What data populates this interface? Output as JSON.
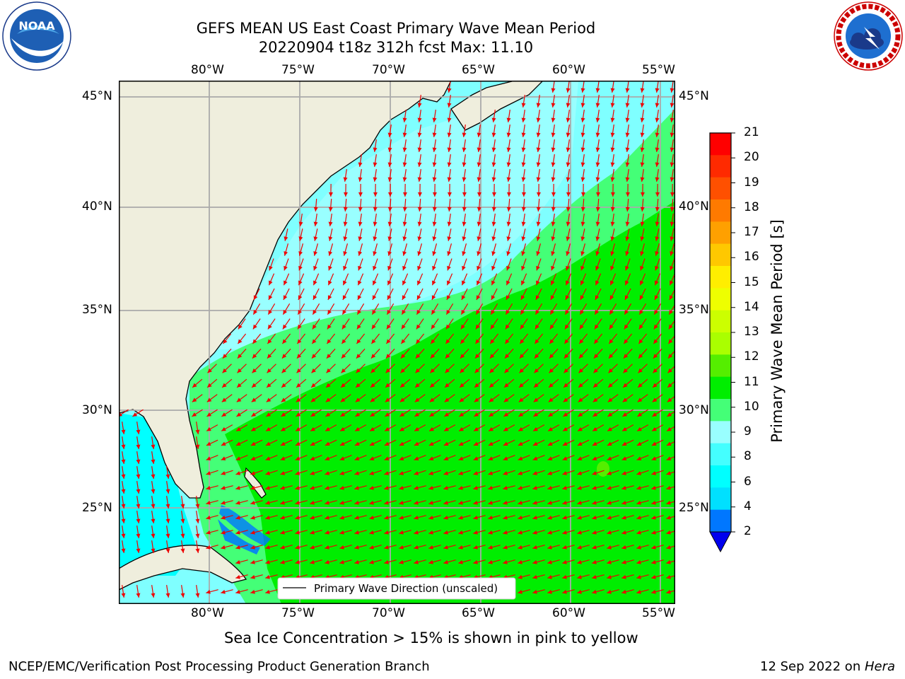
{
  "title": {
    "line1": "GEFS MEAN US East Coast Primary Wave Mean Period",
    "line2": "20220904 t18z 312h fcst   Max: 11.10"
  },
  "logos": {
    "left_icon": "noaa-logo-icon",
    "left_text": "NOAA",
    "left_ring": "NATIONAL OCEANIC AND ATMOSPHERIC ADMINISTRATION · U.S. DEPARTMENT OF COMMERCE",
    "right_icon": "nws-logo-icon",
    "right_ring": "NATIONAL WEATHER SERVICE"
  },
  "map": {
    "lon_labels": [
      "80°W",
      "75°W",
      "70°W",
      "65°W",
      "60°W",
      "55°W"
    ],
    "lat_labels": [
      "45°N",
      "40°N",
      "35°N",
      "30°N",
      "25°N"
    ],
    "legend": "Primary Wave Direction (unscaled)",
    "land_color": "#efeedd",
    "ocean_color": "#7fffff"
  },
  "colorbar": {
    "label": "Primary Wave Mean Period [s]",
    "ticks": [
      "21",
      "20",
      "19",
      "18",
      "17",
      "16",
      "15",
      "14",
      "13",
      "12",
      "11",
      "10",
      "9",
      "8",
      "6",
      "4",
      "2"
    ],
    "colors": [
      "#ff0000",
      "#ff2a00",
      "#ff5000",
      "#ff7a00",
      "#ffa000",
      "#ffc800",
      "#ffee00",
      "#eeff00",
      "#ccff00",
      "#aaff00",
      "#55ee00",
      "#00ee00",
      "#44ff77",
      "#99ffff",
      "#44ffff",
      "#00ffff",
      "#00e0ff",
      "#0077ff",
      "#0000ee"
    ]
  },
  "note": "Sea Ice Concentration > 15% is shown in pink to yellow",
  "footer": {
    "left": "NCEP/EMC/Verification Post Processing Product Generation Branch",
    "right_date": "12 Sep 2022 on ",
    "right_host": "Hera"
  }
}
